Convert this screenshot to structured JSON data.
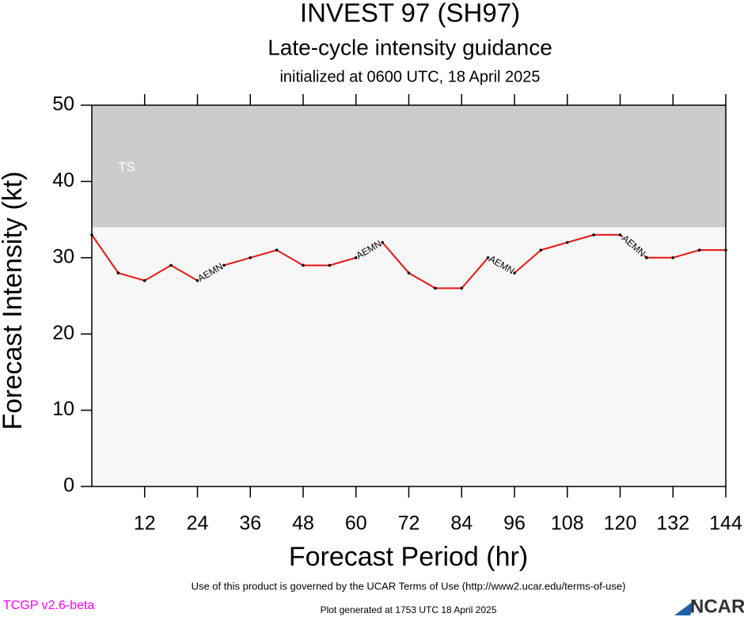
{
  "chart_data": {
    "type": "line",
    "title": "INVEST 97 (SH97)",
    "subtitle": "Late-cycle intensity guidance",
    "note": "initialized at 0600 UTC, 18 April 2025",
    "xlabel": "Forecast Period (hr)",
    "ylabel": "Forecast Intensity (kt)",
    "x": [
      0,
      6,
      12,
      18,
      24,
      30,
      36,
      42,
      48,
      54,
      60,
      66,
      72,
      78,
      84,
      90,
      96,
      102,
      108,
      114,
      120,
      126,
      132,
      138,
      144
    ],
    "series": [
      {
        "name": "AEMN",
        "color": "#e8150f",
        "values": [
          33,
          28,
          27,
          29,
          27,
          29,
          30,
          31,
          29,
          29,
          30,
          32,
          28,
          26,
          26,
          30,
          28,
          31,
          32,
          33,
          33,
          30,
          30,
          31,
          31
        ]
      }
    ],
    "xlim": [
      0,
      144
    ],
    "ylim": [
      0,
      50
    ],
    "xticks": [
      12,
      24,
      36,
      48,
      60,
      72,
      84,
      96,
      108,
      120,
      132,
      144
    ],
    "yticks": [
      0,
      10,
      20,
      30,
      40,
      50
    ],
    "bands": [
      {
        "label": "TS",
        "from": 34,
        "to": 50,
        "color": "#cccccc"
      }
    ]
  },
  "footer": {
    "terms": "Use of this product is governed by the UCAR Terms of Use (http://www2.ucar.edu/terms-of-use)",
    "version": "TCGP v2.6-beta",
    "generated": "Plot generated at 1753 UTC   18 April 2025",
    "logo": "NCAR"
  }
}
